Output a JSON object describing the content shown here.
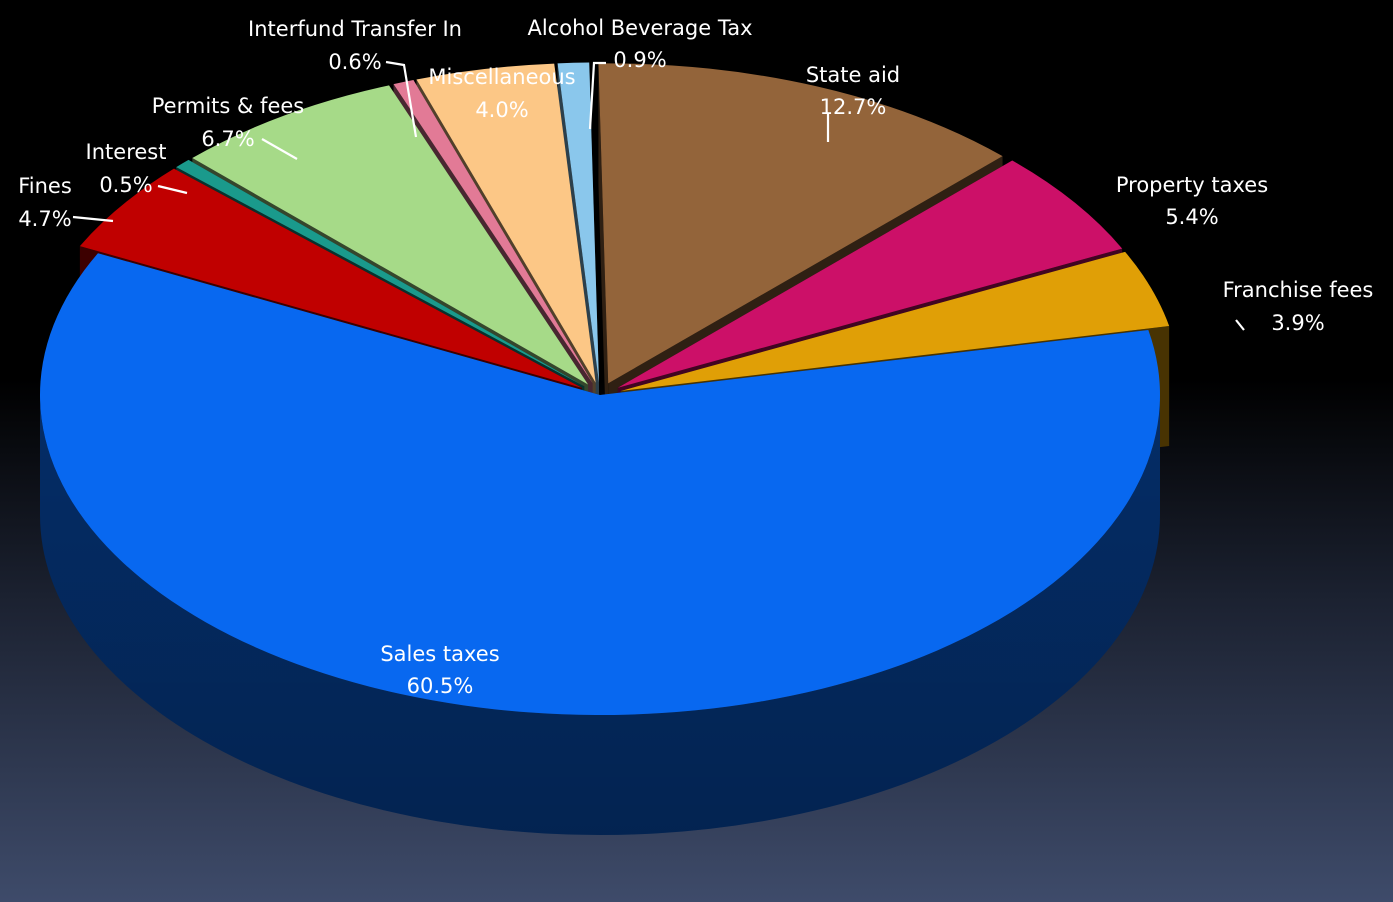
{
  "chart_data": {
    "type": "pie",
    "style": "3d-exploded",
    "slices": [
      {
        "name": "State aid",
        "label": "12.7%",
        "value": 12.7,
        "color": "#93643a"
      },
      {
        "name": "Property taxes",
        "label": "5.4%",
        "value": 5.4,
        "color": "#cc1068"
      },
      {
        "name": "Franchise fees",
        "label": "3.9%",
        "value": 3.9,
        "color": "#e09f06"
      },
      {
        "name": "Sales taxes",
        "label": "60.5%",
        "value": 60.5,
        "color": "#0868f0"
      },
      {
        "name": "Fines",
        "label": "4.7%",
        "value": 4.7,
        "color": "#c00000"
      },
      {
        "name": "Interest",
        "label": "0.5%",
        "value": 0.5,
        "color": "#1a9a8c"
      },
      {
        "name": "Permits & fees",
        "label": "6.7%",
        "value": 6.7,
        "color": "#a6da88"
      },
      {
        "name": "Interfund Transfer In",
        "label": "0.6%",
        "value": 0.6,
        "color": "#e27a96"
      },
      {
        "name": "Miscellaneous",
        "label": "4.0%",
        "value": 4.0,
        "color": "#fcc786"
      },
      {
        "name": "Alcohol Beverage Tax",
        "label": "0.9%",
        "value": 0.9,
        "color": "#8ac7ec"
      }
    ]
  }
}
